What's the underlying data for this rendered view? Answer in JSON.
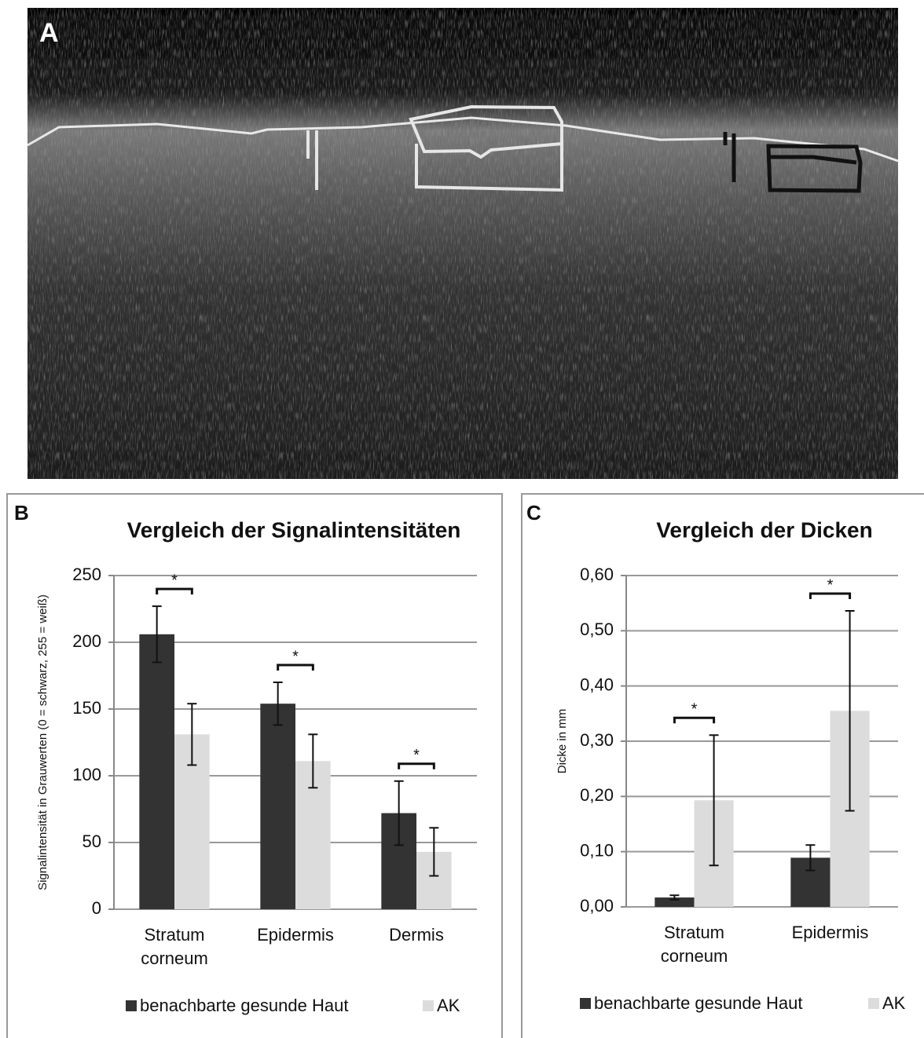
{
  "image_panel": {
    "label": "A"
  },
  "chart_data": [
    {
      "type": "bar",
      "panel_label": "B",
      "title": "Vergleich der Signalintensitäten",
      "y_label": "Signalintensität in Grauwerten (0 = schwarz, 255 = weiß)",
      "categories": [
        "Stratum corneum",
        "Epidermis",
        "Dermis"
      ],
      "series": [
        {
          "name": "benachbarte gesunde Haut",
          "color": "#333333",
          "values": [
            206,
            154,
            72
          ],
          "errors": [
            21,
            16,
            24
          ]
        },
        {
          "name": "AK",
          "color": "#dcdcdc",
          "values": [
            131,
            111,
            43
          ],
          "errors": [
            23,
            20,
            18
          ]
        }
      ],
      "significance_labels": [
        "*",
        "*",
        "*"
      ],
      "ylim": [
        0,
        250
      ],
      "yticks": [
        0,
        50,
        100,
        150,
        200,
        250
      ],
      "grid": true
    },
    {
      "type": "bar",
      "panel_label": "C",
      "title": "Vergleich der Dicken",
      "y_label": "Dicke in mm",
      "categories": [
        "Stratum corneum",
        "Epidermis"
      ],
      "series": [
        {
          "name": "benachbarte gesunde Haut",
          "color": "#333333",
          "values": [
            0.017,
            0.089
          ],
          "errors": [
            0.004,
            0.023
          ]
        },
        {
          "name": "AK",
          "color": "#dcdcdc",
          "values": [
            0.193,
            0.355
          ],
          "errors": [
            0.118,
            0.181
          ]
        }
      ],
      "significance_labels": [
        "*",
        "*"
      ],
      "ylim": [
        0,
        0.6
      ],
      "yticks": [
        {
          "value": 0,
          "label": "0,00"
        },
        {
          "value": 0.1,
          "label": "0,10"
        },
        {
          "value": 0.2,
          "label": "0,20"
        },
        {
          "value": 0.3,
          "label": "0,30"
        },
        {
          "value": 0.4,
          "label": "0,40"
        },
        {
          "value": 0.5,
          "label": "0,50"
        },
        {
          "value": 0.6,
          "label": "0,60"
        }
      ],
      "grid": true
    }
  ]
}
